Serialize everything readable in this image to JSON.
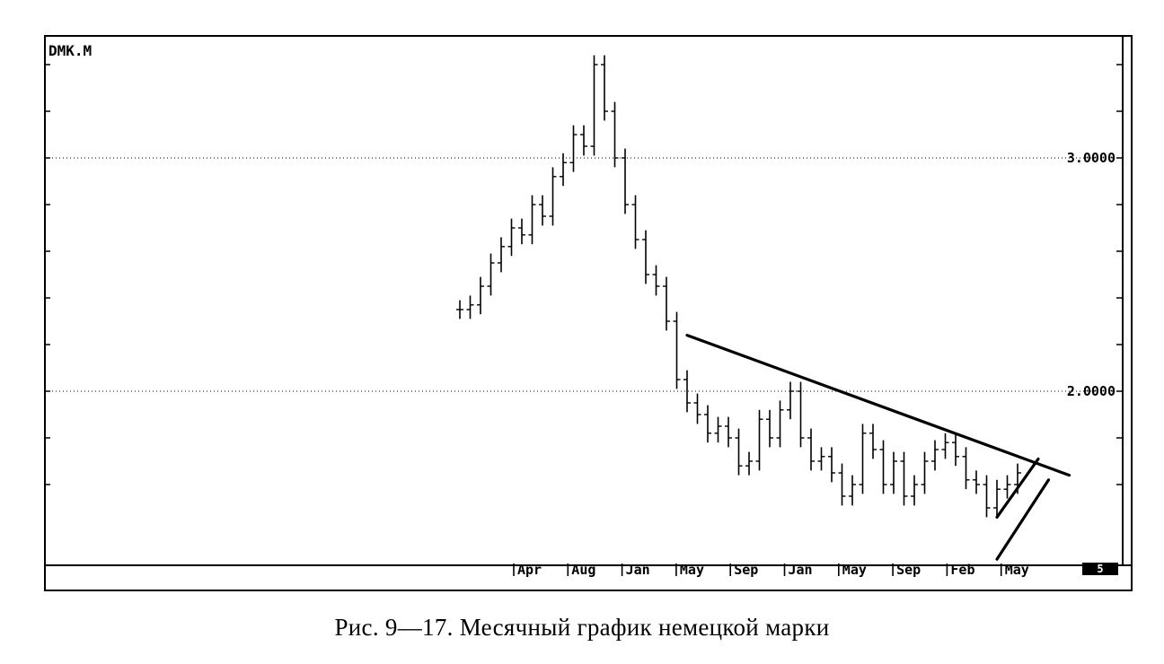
{
  "caption": "Рис. 9—17.  Месячный график немецкой марки",
  "chart_data": {
    "type": "bar",
    "ticker": "DMK.M",
    "corner_label": "5",
    "ylim": [
      1.3,
      3.5
    ],
    "y_grid_lines": [
      1.6,
      1.8,
      2.0,
      2.2,
      2.4,
      2.6,
      2.8,
      3.0,
      3.2,
      3.4
    ],
    "price_labels": [
      {
        "value": 3.0,
        "text": "3.0000"
      },
      {
        "value": 2.0,
        "text": "2.0000"
      }
    ],
    "month_labels": [
      "Apr",
      "Aug",
      "Jan",
      "May",
      "Sep",
      "Jan",
      "May",
      "Sep",
      "Feb",
      "May"
    ],
    "series": [
      {
        "close_approx": [
          2.35,
          2.37,
          2.45,
          2.55,
          2.62,
          2.7,
          2.67,
          2.8,
          2.75,
          2.92,
          2.98,
          3.1,
          3.05,
          3.4,
          3.2,
          3.0,
          2.8,
          2.65,
          2.5,
          2.45,
          2.3,
          2.05,
          1.95,
          1.9,
          1.82,
          1.85,
          1.8,
          1.68,
          1.7,
          1.88,
          1.8,
          1.92,
          2.0,
          1.8,
          1.7,
          1.72,
          1.65,
          1.55,
          1.6,
          1.82,
          1.75,
          1.6,
          1.7,
          1.55,
          1.6,
          1.7,
          1.75,
          1.78,
          1.72,
          1.62,
          1.6,
          1.5,
          1.58,
          1.6,
          1.65
        ]
      }
    ],
    "trendlines": [
      {
        "role": "resistance",
        "from": {
          "bar": 22,
          "price": 2.24
        },
        "to": {
          "bar": 59,
          "price": 1.64
        }
      },
      {
        "role": "channel-upper",
        "from": {
          "bar": 52,
          "price": 1.46
        },
        "to": {
          "bar": 56,
          "price": 1.71
        }
      },
      {
        "role": "channel-lower",
        "from": {
          "bar": 52,
          "price": 1.28
        },
        "to": {
          "bar": 57,
          "price": 1.62
        }
      }
    ]
  }
}
